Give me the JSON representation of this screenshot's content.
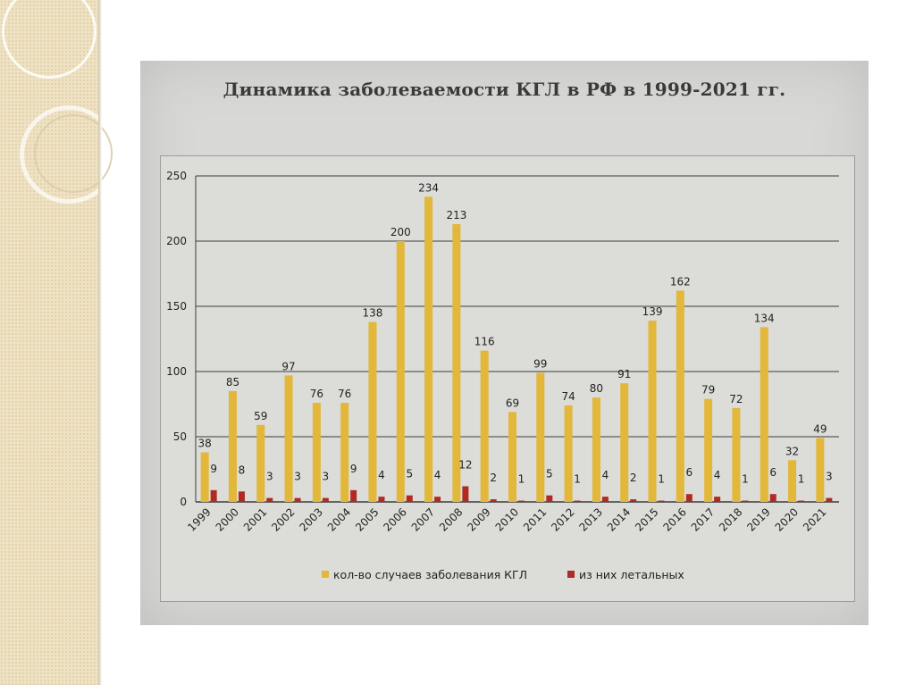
{
  "chart_data": {
    "type": "bar",
    "title": "Динамика заболеваемости КГЛ в РФ в 1999-2021 гг.",
    "categories": [
      "1999",
      "2000",
      "2001",
      "2002",
      "2003",
      "2004",
      "2005",
      "2006",
      "2007",
      "2008",
      "2009",
      "2010",
      "2011",
      "2012",
      "2013",
      "2014",
      "2015",
      "2016",
      "2017",
      "2018",
      "2019",
      "2020",
      "2021"
    ],
    "series": [
      {
        "name": "кол-во случаев заболевания КГЛ",
        "color": "#e2b73a",
        "values": [
          38,
          85,
          59,
          97,
          76,
          76,
          138,
          200,
          234,
          213,
          116,
          69,
          99,
          74,
          80,
          91,
          139,
          162,
          79,
          72,
          134,
          32,
          49
        ]
      },
      {
        "name": "из них летальных",
        "color": "#b02a25",
        "values": [
          9,
          8,
          3,
          3,
          3,
          9,
          4,
          5,
          4,
          12,
          2,
          1,
          5,
          1,
          4,
          2,
          1,
          6,
          4,
          1,
          6,
          1,
          3
        ]
      }
    ],
    "yticks": [
      0,
      50,
      100,
      150,
      200,
      250
    ],
    "ylim": [
      0,
      250
    ],
    "grid": true,
    "legend": "bottom"
  }
}
